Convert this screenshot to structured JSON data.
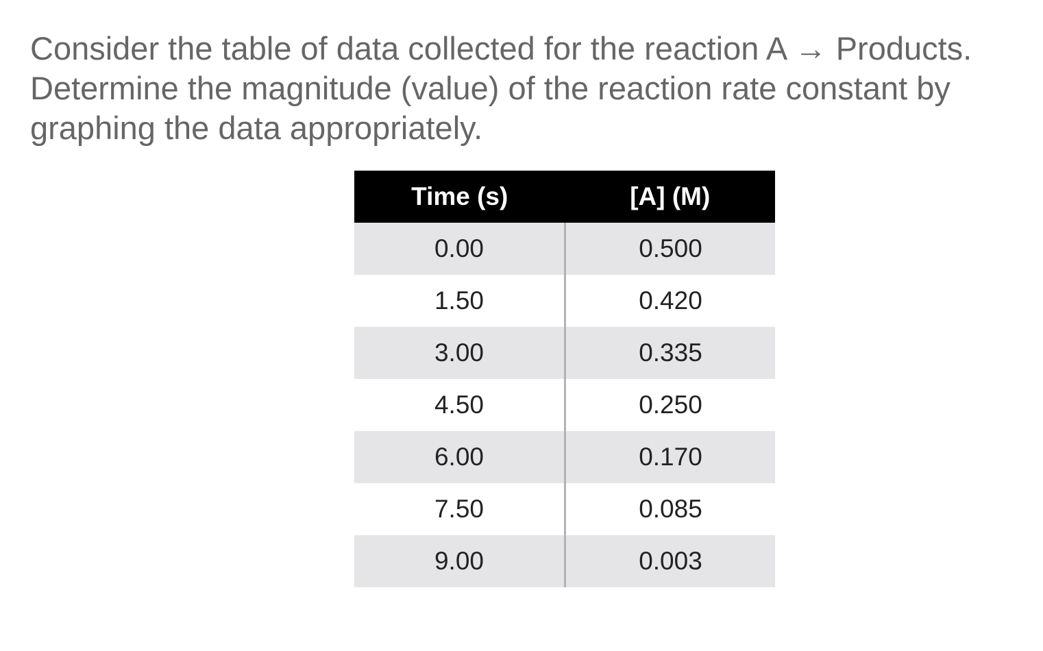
{
  "question": {
    "line1": "Consider the table of data collected for the reaction A → Products.",
    "line2": "Determine the magnitude (value) of the reaction rate constant by",
    "line3": "graphing the data appropriately."
  },
  "table": {
    "headers": [
      "Time (s)",
      "[A] (M)"
    ],
    "rows": [
      [
        "0.00",
        "0.500"
      ],
      [
        "1.50",
        "0.420"
      ],
      [
        "3.00",
        "0.335"
      ],
      [
        "4.50",
        "0.250"
      ],
      [
        "6.00",
        "0.170"
      ],
      [
        "7.50",
        "0.085"
      ],
      [
        "9.00",
        "0.003"
      ]
    ]
  },
  "colors": {
    "text": "#666666",
    "header_bg": "#000000",
    "header_text": "#ffffff",
    "stripe": "#e5e5e8",
    "divider": "#b3b3b3"
  }
}
